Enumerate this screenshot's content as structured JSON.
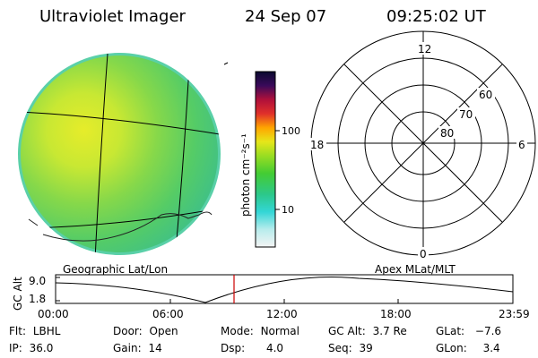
{
  "header": {
    "instrument": "Ultraviolet Imager",
    "date": "24 Sep 07",
    "time": "09:25:02 UT"
  },
  "colorbar": {
    "unit_label": "photon cm⁻²s⁻¹",
    "ticks": [
      "100",
      "10"
    ]
  },
  "polar_plot": {
    "mlt_labels": [
      "12",
      "18",
      "6",
      "0"
    ],
    "lat_labels": [
      "60",
      "70",
      "80"
    ]
  },
  "timeline": {
    "left_label": "Geographic Lat/Lon",
    "right_label": "Apex MLat/MLT",
    "y_label": "GC Alt",
    "y_ticks": [
      "9.0",
      "1.8"
    ],
    "x_ticks": [
      "00:00",
      "06:00",
      "12:00",
      "18:00",
      "23:59"
    ],
    "marker_time": "09:25",
    "marker_color": "#cc0000"
  },
  "status": [
    {
      "key": "Flt:",
      "value": "LBHL"
    },
    {
      "key": "IP:",
      "value": "36.0"
    },
    {
      "key": "Door:",
      "value": "Open"
    },
    {
      "key": "Gain:",
      "value": "14"
    },
    {
      "key": "Mode:",
      "value": "Normal"
    },
    {
      "key": "Dsp:",
      "value": "4.0"
    },
    {
      "key": "GC Alt:",
      "value": "3.7 Re"
    },
    {
      "key": "Seq:",
      "value": "39"
    },
    {
      "key": "GLat:",
      "value": "−7.6"
    },
    {
      "key": "GLon:",
      "value": "3.4"
    }
  ]
}
